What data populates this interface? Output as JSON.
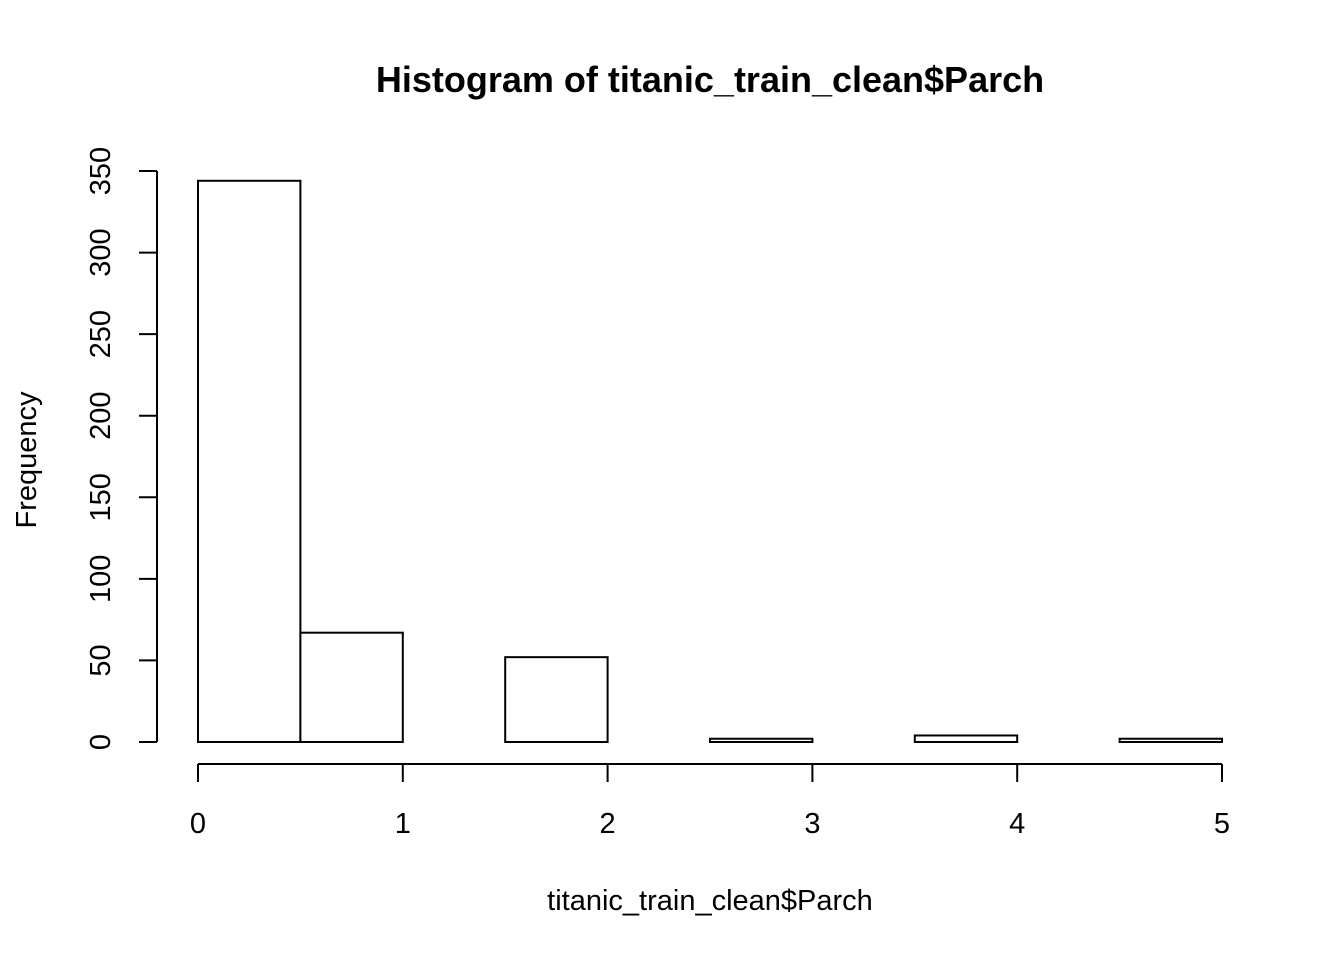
{
  "chart_data": {
    "type": "bar",
    "title": "Histogram of titanic_train_clean$Parch",
    "xlabel": "titanic_train_clean$Parch",
    "ylabel": "Frequency",
    "bins": [
      {
        "x0": 0.0,
        "x1": 0.5,
        "value": 344
      },
      {
        "x0": 0.5,
        "x1": 1.0,
        "value": 67
      },
      {
        "x0": 1.0,
        "x1": 1.5,
        "value": 0
      },
      {
        "x0": 1.5,
        "x1": 2.0,
        "value": 52
      },
      {
        "x0": 2.0,
        "x1": 2.5,
        "value": 0
      },
      {
        "x0": 2.5,
        "x1": 3.0,
        "value": 2
      },
      {
        "x0": 3.0,
        "x1": 3.5,
        "value": 0
      },
      {
        "x0": 3.5,
        "x1": 4.0,
        "value": 4
      },
      {
        "x0": 4.0,
        "x1": 4.5,
        "value": 0
      },
      {
        "x0": 4.5,
        "x1": 5.0,
        "value": 2
      }
    ],
    "xlim": [
      0,
      5
    ],
    "ylim": [
      0,
      350
    ],
    "x_ticks": [
      "0",
      "1",
      "2",
      "3",
      "4",
      "5"
    ],
    "y_ticks": [
      "0",
      "50",
      "100",
      "150",
      "200",
      "250",
      "300",
      "350"
    ],
    "grid": false,
    "legend": "none"
  }
}
